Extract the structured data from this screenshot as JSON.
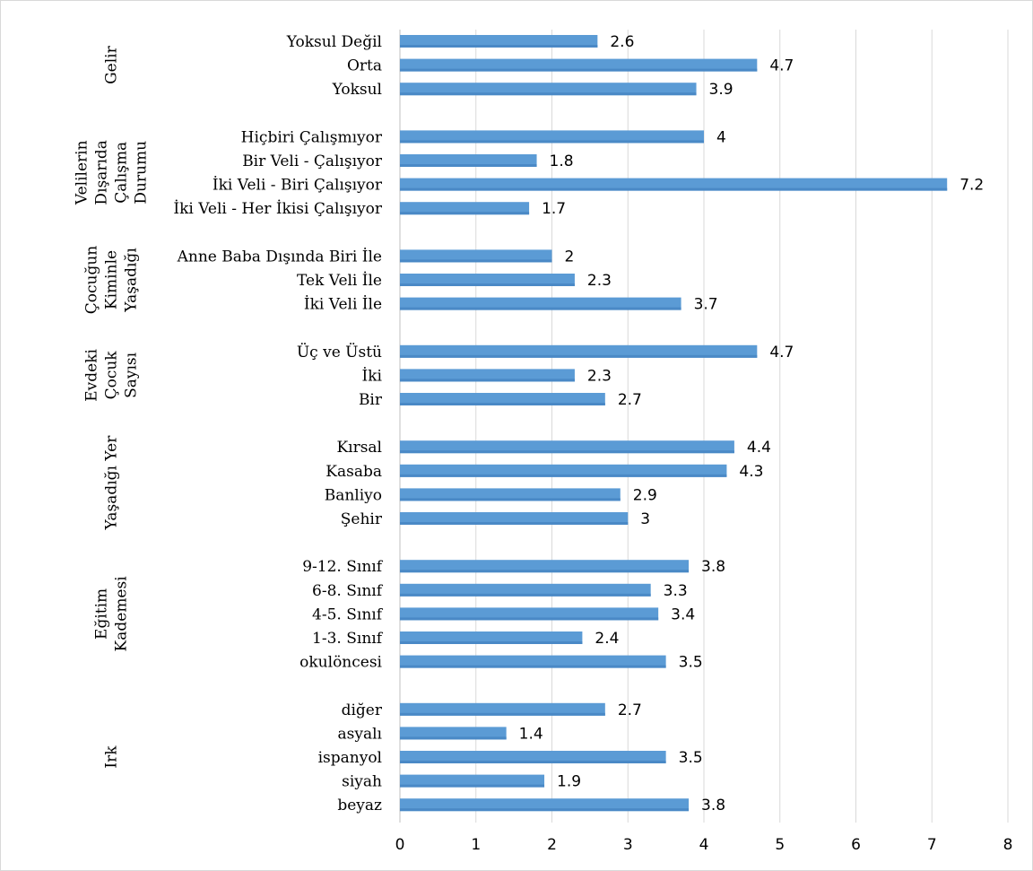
{
  "chart_data": {
    "type": "bar",
    "orientation": "horizontal",
    "xlim": [
      0,
      8
    ],
    "x_ticks": [
      "0",
      "1",
      "2",
      "3",
      "4",
      "5",
      "6",
      "7",
      "8"
    ],
    "grid": true,
    "legend": "none",
    "bar_color": "#5b9bd5",
    "groups": [
      {
        "label_lines": [
          "Gelir"
        ],
        "items": [
          {
            "label": "Yoksul Değil",
            "value": 2.6,
            "value_text": "2.6"
          },
          {
            "label": "Orta",
            "value": 4.7,
            "value_text": "4.7"
          },
          {
            "label": "Yoksul",
            "value": 3.9,
            "value_text": "3.9"
          }
        ]
      },
      {
        "label_lines": [
          "Velilerin",
          "Dışarıda",
          "Çalışma",
          "Durumu"
        ],
        "items": [
          {
            "label": "Hiçbiri Çalışmıyor",
            "value": 4,
            "value_text": "4"
          },
          {
            "label": "Bir Veli - Çalışıyor",
            "value": 1.8,
            "value_text": "1.8"
          },
          {
            "label": "İki Veli - Biri Çalışıyor",
            "value": 7.2,
            "value_text": "7.2"
          },
          {
            "label": "İki Veli - Her İkisi Çalışıyor",
            "value": 1.7,
            "value_text": "1.7"
          }
        ]
      },
      {
        "label_lines": [
          "Çocuğun",
          "Kiminle",
          "Yaşadığı"
        ],
        "items": [
          {
            "label": "Anne Baba Dışında Biri İle",
            "value": 2,
            "value_text": "2"
          },
          {
            "label": "Tek Veli İle",
            "value": 2.3,
            "value_text": "2.3"
          },
          {
            "label": "İki Veli İle",
            "value": 3.7,
            "value_text": "3.7"
          }
        ]
      },
      {
        "label_lines": [
          "Evdeki",
          "Çocuk",
          "Sayısı"
        ],
        "items": [
          {
            "label": "Üç ve Üstü",
            "value": 4.7,
            "value_text": "4.7"
          },
          {
            "label": "İki",
            "value": 2.3,
            "value_text": "2.3"
          },
          {
            "label": "Bir",
            "value": 2.7,
            "value_text": "2.7"
          }
        ]
      },
      {
        "label_lines": [
          "Yaşadığı Yer"
        ],
        "items": [
          {
            "label": "Kırsal",
            "value": 4.4,
            "value_text": "4.4"
          },
          {
            "label": "Kasaba",
            "value": 4.3,
            "value_text": "4.3"
          },
          {
            "label": "Banliyo",
            "value": 2.9,
            "value_text": "2.9"
          },
          {
            "label": "Şehir",
            "value": 3,
            "value_text": "3"
          }
        ]
      },
      {
        "label_lines": [
          "Eğitim",
          "Kademesi"
        ],
        "items": [
          {
            "label": "9-12. Sınıf",
            "value": 3.8,
            "value_text": "3.8"
          },
          {
            "label": "6-8. Sınıf",
            "value": 3.3,
            "value_text": "3.3"
          },
          {
            "label": "4-5. Sınıf",
            "value": 3.4,
            "value_text": "3.4"
          },
          {
            "label": "1-3. Sınıf",
            "value": 2.4,
            "value_text": "2.4"
          },
          {
            "label": "okulöncesi",
            "value": 3.5,
            "value_text": "3.5"
          }
        ]
      },
      {
        "label_lines": [
          "Irk"
        ],
        "items": [
          {
            "label": "diğer",
            "value": 2.7,
            "value_text": "2.7"
          },
          {
            "label": "asyalı",
            "value": 1.4,
            "value_text": "1.4"
          },
          {
            "label": "ispanyol",
            "value": 3.5,
            "value_text": "3.5"
          },
          {
            "label": "siyah",
            "value": 1.9,
            "value_text": "1.9"
          },
          {
            "label": "beyaz",
            "value": 3.8,
            "value_text": "3.8"
          }
        ]
      }
    ]
  }
}
